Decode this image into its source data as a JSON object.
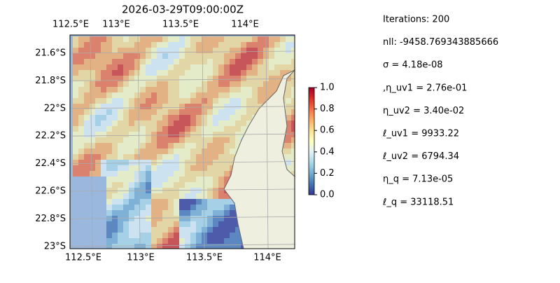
{
  "title": "2026-03-29T09:00:00Z",
  "map": {
    "xticks": [
      {
        "value": 112.5,
        "label": "112.5°E"
      },
      {
        "value": 113,
        "label": "113°E"
      },
      {
        "value": 113.5,
        "label": "113.5°E"
      },
      {
        "value": 114,
        "label": "114°E"
      }
    ],
    "yticks": [
      {
        "value": 21.6,
        "label": "21.6°S"
      },
      {
        "value": 21.8,
        "label": "21.8°S"
      },
      {
        "value": 22,
        "label": "22°S"
      },
      {
        "value": 22.2,
        "label": "22.2°S"
      },
      {
        "value": 22.4,
        "label": "22.4°S"
      },
      {
        "value": 22.6,
        "label": "22.6°S"
      },
      {
        "value": 22.8,
        "label": "22.8°S"
      },
      {
        "value": 23,
        "label": "23°S"
      }
    ]
  },
  "colorbar": {
    "lim": [
      0,
      1
    ],
    "ticks": [
      {
        "value": 0,
        "label": "0.0"
      },
      0.2,
      0.4,
      0.6,
      0.8,
      {
        "value": 1,
        "label": "1.0"
      }
    ]
  },
  "info": [
    "Iterations: 200",
    "nll: -9458.769343885666",
    "σ = 4.18e-08",
    ",η_uv1 = 2.76e-01",
    "η_uv2 = 3.40e-02",
    "ℓ_uv1 = 9933.22",
    "ℓ_uv2 = 6794.34",
    "η_q = 7.13e-05",
    "ℓ_q = 33118.51"
  ]
}
